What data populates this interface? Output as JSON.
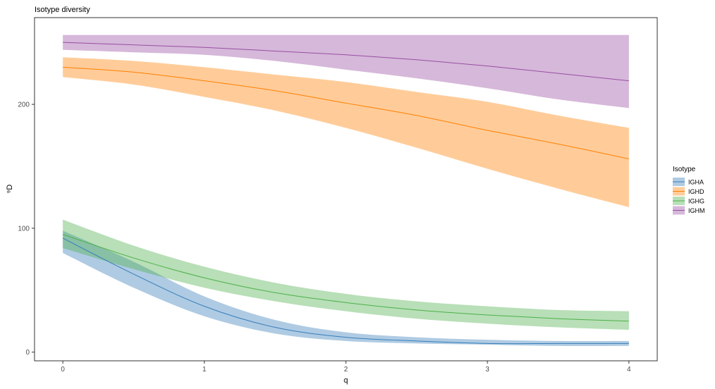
{
  "chart_data": {
    "type": "line",
    "title": "Isotype diversity",
    "xlabel": "q",
    "ylabel": "⁹D",
    "xlim": [
      -0.2,
      4.2
    ],
    "ylim": [
      -7,
      270
    ],
    "x_ticks": [
      0,
      1,
      2,
      3,
      4
    ],
    "y_ticks": [
      0,
      100,
      200
    ],
    "grid": false,
    "legend": {
      "title": "Isotype",
      "placement": "right"
    },
    "x": [
      0,
      0.5,
      1,
      1.5,
      2,
      2.5,
      3,
      3.5,
      4
    ],
    "series": [
      {
        "name": "IGHA",
        "color": "#377eb8",
        "values": [
          92,
          63,
          37,
          20,
          12,
          9,
          7,
          7,
          7
        ],
        "lower": [
          80,
          52,
          29,
          15,
          9,
          7,
          6,
          5,
          5
        ],
        "upper": [
          98,
          73,
          45,
          26,
          16,
          12,
          10,
          9,
          9
        ]
      },
      {
        "name": "IGHD",
        "color": "#ff7f00",
        "values": [
          230,
          226,
          219,
          211,
          201,
          191,
          179,
          168,
          156
        ],
        "lower": [
          222,
          216,
          206,
          195,
          181,
          165,
          148,
          132,
          117
        ],
        "upper": [
          238,
          235,
          230,
          224,
          218,
          210,
          202,
          191,
          181
        ]
      },
      {
        "name": "IGHG",
        "color": "#4daf4a",
        "values": [
          95,
          76,
          60,
          48,
          40,
          34,
          30,
          27,
          25
        ],
        "lower": [
          84,
          67,
          52,
          41,
          33,
          27,
          23,
          20,
          18
        ],
        "upper": [
          107,
          86,
          69,
          56,
          47,
          41,
          37,
          34,
          33
        ]
      },
      {
        "name": "IGHM",
        "color": "#984ea3",
        "values": [
          250,
          248,
          246,
          243,
          240,
          236,
          231,
          225,
          219
        ],
        "lower": [
          244,
          242,
          240,
          235,
          228,
          221,
          213,
          204,
          197
        ],
        "upper": [
          256,
          256,
          256,
          256,
          256,
          256,
          256,
          256,
          256
        ]
      }
    ]
  }
}
